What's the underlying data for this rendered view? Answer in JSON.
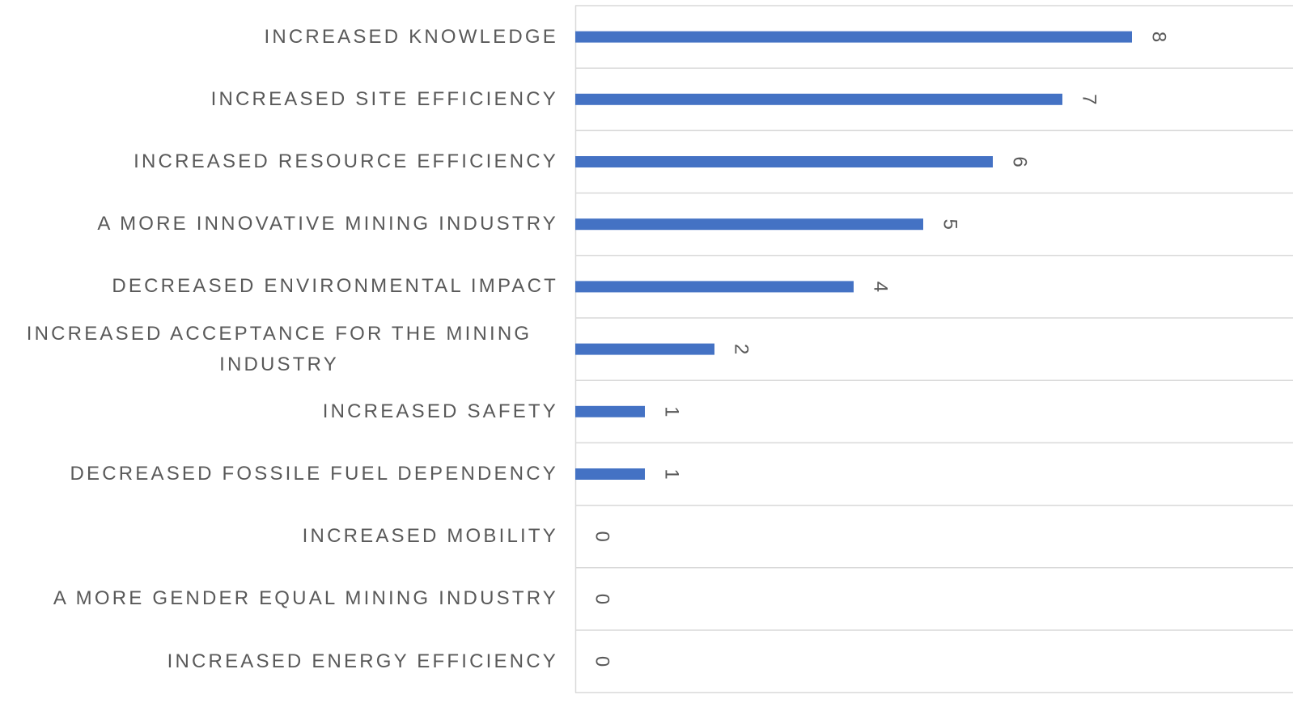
{
  "chart_data": {
    "type": "bar",
    "orientation": "horizontal",
    "categories": [
      "INCREASED KNOWLEDGE",
      "INCREASED SITE EFFICIENCY",
      "INCREASED RESOURCE EFFICIENCY",
      "A MORE INNOVATIVE MINING INDUSTRY",
      "DECREASED ENVIRONMENTAL IMPACT",
      "INCREASED ACCEPTANCE FOR THE MINING INDUSTRY",
      "INCREASED SAFETY",
      "DECREASED FOSSILE FUEL DEPENDENCY",
      "INCREASED MOBILITY",
      "A MORE GENDER EQUAL MINING INDUSTRY",
      "INCREASED ENERGY EFFICIENCY"
    ],
    "values": [
      8,
      7,
      6,
      5,
      4,
      2,
      1,
      1,
      0,
      0,
      0
    ],
    "color": "#4472c4",
    "xlim": [
      0,
      10
    ]
  }
}
